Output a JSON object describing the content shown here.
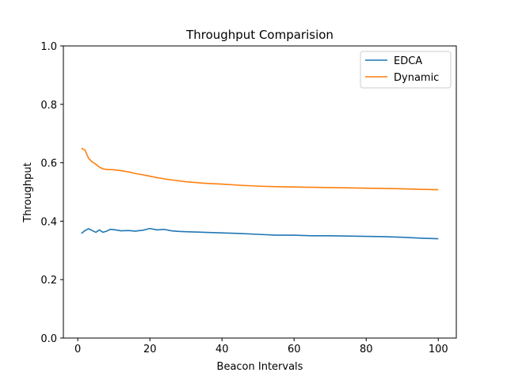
{
  "chart_data": {
    "type": "line",
    "title": "Throughput Comparision",
    "xlabel": "Beacon Intervals",
    "ylabel": "Throughput",
    "xlim": [
      -4,
      105
    ],
    "ylim": [
      0.0,
      1.0
    ],
    "xticks": [
      0,
      20,
      40,
      60,
      80,
      100
    ],
    "xtick_labels": [
      "0",
      "20",
      "40",
      "60",
      "80",
      "100"
    ],
    "yticks": [
      0.0,
      0.2,
      0.4,
      0.6,
      0.8,
      1.0
    ],
    "ytick_labels": [
      "0.0",
      "0.2",
      "0.4",
      "0.6",
      "0.8",
      "1.0"
    ],
    "grid": false,
    "legend_position": "top-right",
    "series": [
      {
        "name": "EDCA",
        "color": "#1f77b4",
        "x": [
          1,
          2,
          3,
          4,
          5,
          6,
          7,
          8,
          9,
          10,
          12,
          14,
          16,
          18,
          20,
          22,
          24,
          26,
          28,
          30,
          35,
          40,
          45,
          50,
          55,
          60,
          65,
          70,
          75,
          80,
          85,
          90,
          95,
          100
        ],
        "y": [
          0.358,
          0.368,
          0.374,
          0.368,
          0.362,
          0.37,
          0.362,
          0.366,
          0.372,
          0.371,
          0.367,
          0.368,
          0.366,
          0.369,
          0.375,
          0.37,
          0.372,
          0.367,
          0.365,
          0.364,
          0.362,
          0.36,
          0.358,
          0.355,
          0.352,
          0.352,
          0.35,
          0.35,
          0.349,
          0.348,
          0.347,
          0.345,
          0.342,
          0.34
        ]
      },
      {
        "name": "Dynamic",
        "color": "#ff7f0e",
        "x": [
          1,
          2,
          3,
          4,
          5,
          6,
          7,
          8,
          10,
          12,
          14,
          16,
          18,
          20,
          22,
          25,
          30,
          35,
          40,
          45,
          50,
          55,
          60,
          65,
          70,
          75,
          80,
          85,
          90,
          95,
          100
        ],
        "y": [
          0.65,
          0.643,
          0.615,
          0.603,
          0.595,
          0.585,
          0.579,
          0.577,
          0.576,
          0.573,
          0.569,
          0.563,
          0.559,
          0.554,
          0.549,
          0.543,
          0.535,
          0.53,
          0.527,
          0.523,
          0.52,
          0.518,
          0.517,
          0.516,
          0.515,
          0.514,
          0.513,
          0.512,
          0.511,
          0.509,
          0.508
        ]
      }
    ]
  }
}
